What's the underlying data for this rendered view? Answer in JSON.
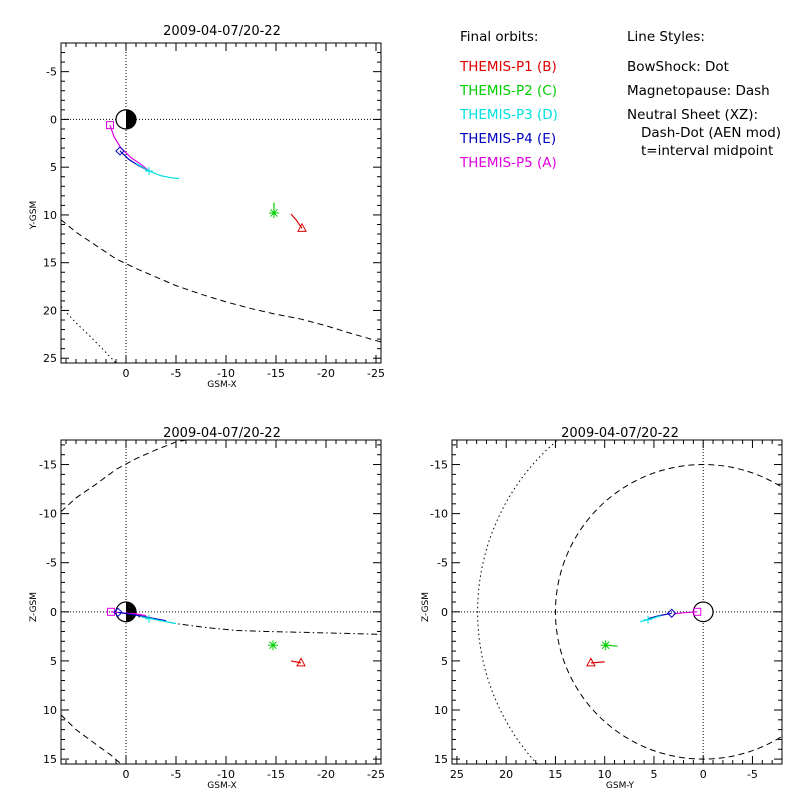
{
  "legend": {
    "orbits_header": "Final orbits:",
    "styles_header": "Line Styles:",
    "orbits": [
      {
        "label": "THEMIS-P1 (B)",
        "color": "#e00000"
      },
      {
        "label": "THEMIS-P2 (C)",
        "color": "#00d000"
      },
      {
        "label": "THEMIS-P3 (D)",
        "color": "#00e0e0"
      },
      {
        "label": "THEMIS-P4 (E)",
        "color": "#0000c0"
      },
      {
        "label": "THEMIS-P5 (A)",
        "color": "#e000e0"
      }
    ],
    "styles": [
      "BowShock: Dot",
      "Magnetopause: Dash",
      "Neutral Sheet (XZ):",
      "  Dash-Dot (AEN mod)",
      "  t=interval midpoint"
    ]
  },
  "chart_data": [
    {
      "type": "line",
      "name": "xy",
      "title": "2009-04-07/20-22",
      "xlabel": "GSM-X",
      "ylabel": "Y-GSM",
      "xlim": [
        6.5,
        -25.5
      ],
      "ylim": [
        -8,
        25.5
      ],
      "x_ticks": [
        0,
        -5,
        -10,
        -15,
        -20,
        -25
      ],
      "x_tick_labels": [
        "0",
        "-5",
        "-10",
        "-15",
        "-20",
        "-25"
      ],
      "y_ticks": [
        -5,
        0,
        5,
        10,
        15,
        20,
        25
      ],
      "y_tick_labels": [
        "-5",
        "0",
        "5",
        "10",
        "15",
        "20",
        "25"
      ],
      "grid": false,
      "earth": {
        "center": [
          0,
          0
        ],
        "radius": 1,
        "half_filled": "night"
      },
      "origin_lines": true,
      "boundaries": [
        {
          "name": "magnetopause",
          "style": "dash",
          "points": [
            [
              6.5,
              10.5
            ],
            [
              5,
              11.8
            ],
            [
              3,
              13.2
            ],
            [
              1,
              14.6
            ],
            [
              -1,
              15.6
            ],
            [
              -3,
              16.5
            ],
            [
              -5,
              17.4
            ],
            [
              -7.5,
              18.3
            ],
            [
              -10,
              19.1
            ],
            [
              -12.5,
              19.8
            ],
            [
              -15,
              20.4
            ],
            [
              -17.5,
              20.9
            ],
            [
              -20,
              21.6
            ],
            [
              -22.5,
              22.4
            ],
            [
              -25.5,
              23.3
            ]
          ]
        },
        {
          "name": "bowshock",
          "style": "dot",
          "points": [
            [
              6.5,
              19.6
            ],
            [
              5,
              21.3
            ],
            [
              3.5,
              22.8
            ],
            [
              2,
              24.4
            ],
            [
              1,
              25.5
            ]
          ]
        }
      ],
      "orbits": [
        {
          "probe": "P5",
          "color": "#e000e0",
          "marker": "square",
          "marker_at": [
            1.6,
            0.6
          ],
          "points": [
            [
              1.6,
              0.6
            ],
            [
              1.2,
              1.8
            ],
            [
              0.5,
              3.0
            ],
            [
              -0.5,
              4.0
            ],
            [
              -1.5,
              4.7
            ],
            [
              -2.2,
              5.3
            ]
          ]
        },
        {
          "probe": "P4",
          "color": "#0000c0",
          "marker": "diamond",
          "marker_at": [
            0.6,
            3.3
          ],
          "points": [
            [
              0.6,
              3.3
            ],
            [
              -0.3,
              4.2
            ],
            [
              -1.2,
              4.8
            ],
            [
              -2.3,
              5.4
            ]
          ]
        },
        {
          "probe": "P3",
          "color": "#00e0e0",
          "marker": "plus",
          "marker_at": [
            -2.3,
            5.4
          ],
          "points": [
            [
              -1.0,
              4.6
            ],
            [
              -2.3,
              5.4
            ],
            [
              -3.5,
              5.9
            ],
            [
              -4.5,
              6.1
            ],
            [
              -5.3,
              6.2
            ]
          ]
        },
        {
          "probe": "P2",
          "color": "#00d000",
          "marker": "asterisk",
          "marker_at": [
            -14.8,
            9.8
          ],
          "points": [
            [
              -14.8,
              8.7
            ],
            [
              -14.8,
              9.8
            ]
          ]
        },
        {
          "probe": "P1",
          "color": "#e00000",
          "marker": "triangle",
          "marker_at": [
            -17.6,
            11.4
          ],
          "points": [
            [
              -16.5,
              9.9
            ],
            [
              -17.0,
              10.5
            ],
            [
              -17.6,
              11.4
            ]
          ]
        }
      ]
    },
    {
      "type": "line",
      "name": "xz",
      "title": "2009-04-07/20-22",
      "xlabel": "GSM-X",
      "ylabel": "Z-GSM",
      "xlim": [
        6.5,
        -25.5
      ],
      "ylim": [
        -17.5,
        15.5
      ],
      "x_ticks": [
        0,
        -5,
        -10,
        -15,
        -20,
        -25
      ],
      "x_tick_labels": [
        "0",
        "-5",
        "-10",
        "-15",
        "-20",
        "-25"
      ],
      "y_ticks": [
        -15,
        -10,
        -5,
        0,
        5,
        10,
        15
      ],
      "y_tick_labels": [
        "-15",
        "-10",
        "-5",
        "0",
        "5",
        "10",
        "15"
      ],
      "grid": false,
      "earth": {
        "center": [
          0,
          0
        ],
        "radius": 1,
        "half_filled": "night"
      },
      "origin_lines": true,
      "boundaries": [
        {
          "name": "magnetopause-north",
          "style": "dash",
          "points": [
            [
              6.5,
              10.5
            ],
            [
              5,
              12.0
            ],
            [
              3,
              13.5
            ],
            [
              1.5,
              14.6
            ],
            [
              0.5,
              15.5
            ]
          ]
        },
        {
          "name": "magnetopause-south",
          "style": "dash",
          "points": [
            [
              6.5,
              -10.2
            ],
            [
              5,
              -11.6
            ],
            [
              3,
              -13.0
            ],
            [
              1,
              -14.5
            ],
            [
              -1,
              -15.6
            ],
            [
              -3,
              -16.5
            ],
            [
              -5,
              -17.3
            ],
            [
              -6,
              -17.5
            ]
          ]
        },
        {
          "name": "neutral-sheet",
          "style": "dashdot",
          "points": [
            [
              1,
              0.2
            ],
            [
              -2,
              0.6
            ],
            [
              -5,
              1.2
            ],
            [
              -8,
              1.6
            ],
            [
              -11,
              1.9
            ],
            [
              -14,
              2.0
            ],
            [
              -18,
              2.1
            ],
            [
              -22,
              2.2
            ],
            [
              -25.5,
              2.3
            ]
          ]
        }
      ],
      "orbits": [
        {
          "probe": "P5",
          "color": "#e000e0",
          "marker": "square",
          "marker_at": [
            1.5,
            0.0
          ],
          "points": [
            [
              1.5,
              0.0
            ],
            [
              0.5,
              0.1
            ],
            [
              -1,
              0.2
            ],
            [
              -2,
              0.4
            ]
          ]
        },
        {
          "probe": "P4",
          "color": "#0000c0",
          "marker": "diamond",
          "marker_at": [
            0.8,
            0.05
          ],
          "points": [
            [
              0.8,
              0.05
            ],
            [
              -0.8,
              0.3
            ],
            [
              -2.4,
              0.6
            ],
            [
              -4,
              0.9
            ]
          ]
        },
        {
          "probe": "P3",
          "color": "#00e0e0",
          "marker": "plus",
          "marker_at": [
            -2.3,
            0.7
          ],
          "points": [
            [
              -1.5,
              0.5
            ],
            [
              -3,
              0.8
            ],
            [
              -5,
              1.2
            ]
          ]
        },
        {
          "probe": "P2",
          "color": "#00d000",
          "marker": "asterisk",
          "marker_at": [
            -14.7,
            3.4
          ],
          "points": [
            [
              -14.8,
              3.5
            ],
            [
              -14.7,
              3.4
            ]
          ]
        },
        {
          "probe": "P1",
          "color": "#e00000",
          "marker": "triangle",
          "marker_at": [
            -17.5,
            5.2
          ],
          "points": [
            [
              -16.5,
              5.0
            ],
            [
              -17.5,
              5.2
            ]
          ]
        }
      ]
    },
    {
      "type": "line",
      "name": "yz",
      "title": "2009-04-07/20-22",
      "xlabel": "GSM-Y",
      "ylabel": "Z-GSM",
      "xlim": [
        25.5,
        -8
      ],
      "ylim": [
        -17.5,
        15.5
      ],
      "x_ticks": [
        25,
        20,
        15,
        10,
        5,
        0,
        -5
      ],
      "x_tick_labels": [
        "25",
        "20",
        "15",
        "10",
        "5",
        "0",
        "-5"
      ],
      "y_ticks": [
        -15,
        -10,
        -5,
        0,
        5,
        10,
        15
      ],
      "y_tick_labels": [
        "-15",
        "-10",
        "-5",
        "0",
        "5",
        "10",
        "15"
      ],
      "grid": false,
      "earth": {
        "center": [
          0,
          0
        ],
        "radius": 1,
        "half_filled": "none"
      },
      "origin_lines": true,
      "boundaries": [
        {
          "name": "magnetopause",
          "style": "dash",
          "circle": {
            "center": [
              0,
              0
            ],
            "radius": 15
          }
        },
        {
          "name": "bowshock",
          "style": "dot",
          "circle": {
            "center": [
              0,
              0
            ],
            "radius": 22.9
          }
        }
      ],
      "orbits": [
        {
          "probe": "P5",
          "color": "#e000e0",
          "marker": "square",
          "marker_at": [
            0.6,
            0.0
          ],
          "points": [
            [
              0.6,
              0.0
            ],
            [
              2,
              0.1
            ],
            [
              3,
              0.2
            ]
          ]
        },
        {
          "probe": "P4",
          "color": "#0000c0",
          "marker": "diamond",
          "marker_at": [
            3.2,
            0.15
          ],
          "points": [
            [
              3.2,
              0.15
            ],
            [
              4.5,
              0.4
            ],
            [
              5.6,
              0.7
            ]
          ]
        },
        {
          "probe": "P3",
          "color": "#00e0e0",
          "marker": "plus",
          "marker_at": [
            5.6,
            0.8
          ],
          "points": [
            [
              4.3,
              0.4
            ],
            [
              5.6,
              0.8
            ],
            [
              6.4,
              1.0
            ]
          ]
        },
        {
          "probe": "P2",
          "color": "#00d000",
          "marker": "asterisk",
          "marker_at": [
            9.9,
            3.4
          ],
          "points": [
            [
              8.7,
              3.5
            ],
            [
              9.9,
              3.4
            ]
          ]
        },
        {
          "probe": "P1",
          "color": "#e00000",
          "marker": "triangle",
          "marker_at": [
            11.4,
            5.2
          ],
          "points": [
            [
              10,
              5.1
            ],
            [
              11.4,
              5.2
            ]
          ]
        }
      ]
    }
  ]
}
